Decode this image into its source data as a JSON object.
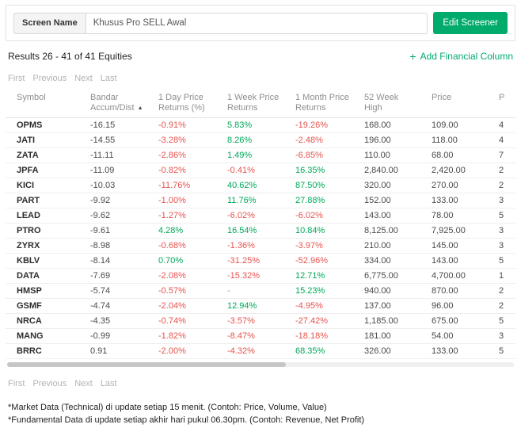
{
  "colors": {
    "accent": "#00ab6b",
    "positive": "#00a85a",
    "negative": "#e5544f"
  },
  "header": {
    "screen_name_label": "Screen Name",
    "screen_name_value": "Khusus Pro SELL Awal",
    "edit_button_label": "Edit Screener"
  },
  "results": {
    "summary": "Results 26 - 41 of 41 Equities",
    "add_column_plus": "+",
    "add_column_label": "Add Financial Column"
  },
  "pagination": {
    "items": [
      "First",
      "Previous",
      "Next",
      "Last"
    ]
  },
  "table": {
    "sort_icon": "▲",
    "columns": [
      {
        "id": "symbol",
        "label": "Symbol"
      },
      {
        "id": "bandar-accum-dist",
        "label": "Bandar\nAccum/Dist",
        "sorted": "asc"
      },
      {
        "id": "1day-price-returns",
        "label": "1 Day Price\nReturns (%)"
      },
      {
        "id": "1week-price-returns",
        "label": "1 Week Price\nReturns"
      },
      {
        "id": "1month-price-returns",
        "label": "1 Month Price\nReturns"
      },
      {
        "id": "52week-high",
        "label": "52 Week High"
      },
      {
        "id": "price",
        "label": "Price"
      },
      {
        "id": "p-cutoff",
        "label": "P"
      }
    ],
    "col_types": [
      "symbol",
      "number",
      "return",
      "return",
      "return",
      "number",
      "number",
      "number"
    ],
    "rows": [
      [
        "OPMS",
        "-16.15",
        "-0.91%",
        "5.83%",
        "-19.26%",
        "168.00",
        "109.00",
        "4"
      ],
      [
        "JATI",
        "-14.55",
        "-3.28%",
        "8.26%",
        "-2.48%",
        "196.00",
        "118.00",
        "4"
      ],
      [
        "ZATA",
        "-11.11",
        "-2.86%",
        "1.49%",
        "-6.85%",
        "110.00",
        "68.00",
        "7"
      ],
      [
        "JPFA",
        "-11.09",
        "-0.82%",
        "-0.41%",
        "16.35%",
        "2,840.00",
        "2,420.00",
        "2"
      ],
      [
        "KICI",
        "-10.03",
        "-11.76%",
        "40.62%",
        "87.50%",
        "320.00",
        "270.00",
        "2"
      ],
      [
        "PART",
        "-9.92",
        "-1.00%",
        "11.76%",
        "27.88%",
        "152.00",
        "133.00",
        "3"
      ],
      [
        "LEAD",
        "-9.62",
        "-1.27%",
        "-6.02%",
        "-6.02%",
        "143.00",
        "78.00",
        "5"
      ],
      [
        "PTRO",
        "-9.61",
        "4.28%",
        "16.54%",
        "10.84%",
        "8,125.00",
        "7,925.00",
        "3"
      ],
      [
        "ZYRX",
        "-8.98",
        "-0.68%",
        "-1.36%",
        "-3.97%",
        "210.00",
        "145.00",
        "3"
      ],
      [
        "KBLV",
        "-8.14",
        "0.70%",
        "-31.25%",
        "-52.96%",
        "334.00",
        "143.00",
        "5"
      ],
      [
        "DATA",
        "-7.69",
        "-2.08%",
        "-15.32%",
        "12.71%",
        "6,775.00",
        "4,700.00",
        "1"
      ],
      [
        "HMSP",
        "-5.74",
        "-0.57%",
        "-",
        "15.23%",
        "940.00",
        "870.00",
        "2"
      ],
      [
        "GSMF",
        "-4.74",
        "-2.04%",
        "12.94%",
        "-4.95%",
        "137.00",
        "96.00",
        "2"
      ],
      [
        "NRCA",
        "-4.35",
        "-0.74%",
        "-3.57%",
        "-27.42%",
        "1,185.00",
        "675.00",
        "5"
      ],
      [
        "MANG",
        "-0.99",
        "-1.82%",
        "-8.47%",
        "-18.18%",
        "181.00",
        "54.00",
        "3"
      ],
      [
        "BRRC",
        "0.91",
        "-2.00%",
        "-4.32%",
        "68.35%",
        "326.00",
        "133.00",
        "5"
      ]
    ]
  },
  "footer": {
    "note1": "*Market Data (Technical) di update setiap 15 menit. (Contoh: Price, Volume, Value)",
    "note2": "*Fundamental Data di update setiap akhir hari pukul 06.30pm. (Contoh: Revenue, Net Profit)"
  }
}
